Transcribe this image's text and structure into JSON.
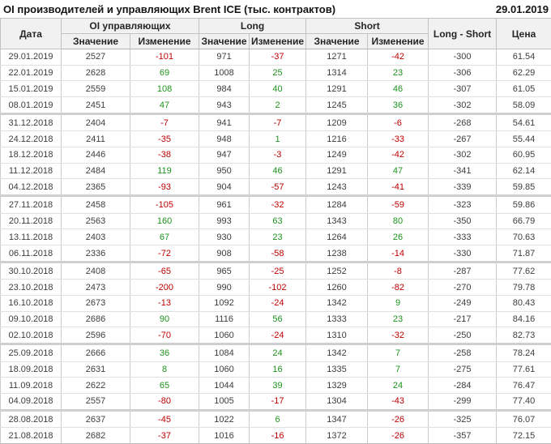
{
  "chart_data": {
    "type": "table",
    "title": "OI производителей и управляющих Brent ICE (тыс. контрактов)",
    "as_of_date": "29.01.2019",
    "headers": {
      "date": "Дата",
      "oi_group": "OI управляющих",
      "long_group": "Long",
      "short_group": "Short",
      "long_short": "Long - Short",
      "price": "Цена",
      "value": "Значение",
      "change": "Изменение"
    },
    "colors": {
      "positive": "#1d941d",
      "negative": "#c00000",
      "text": "#3d3d3d"
    },
    "columns": [
      {
        "key": "date",
        "signed": false
      },
      {
        "key": "oi",
        "signed": false
      },
      {
        "key": "oi_chg",
        "signed": true
      },
      {
        "key": "long",
        "signed": false
      },
      {
        "key": "long_chg",
        "signed": true
      },
      {
        "key": "short",
        "signed": false
      },
      {
        "key": "short_chg",
        "signed": true
      },
      {
        "key": "ls",
        "signed": false
      },
      {
        "key": "price",
        "signed": false
      }
    ],
    "rows": [
      {
        "date": "29.01.2019",
        "oi": 2527,
        "oi_chg": -101,
        "long": 971,
        "long_chg": -37,
        "short": 1271,
        "short_chg": -42,
        "ls": -300,
        "price": "61.54"
      },
      {
        "date": "22.01.2019",
        "oi": 2628,
        "oi_chg": 69,
        "long": 1008,
        "long_chg": 25,
        "short": 1314,
        "short_chg": 23,
        "ls": -306,
        "price": "62.29"
      },
      {
        "date": "15.01.2019",
        "oi": 2559,
        "oi_chg": 108,
        "long": 984,
        "long_chg": 40,
        "short": 1291,
        "short_chg": 46,
        "ls": -307,
        "price": "61.05"
      },
      {
        "date": "08.01.2019",
        "oi": 2451,
        "oi_chg": 47,
        "long": 943,
        "long_chg": 2,
        "short": 1245,
        "short_chg": 36,
        "ls": -302,
        "price": "58.09"
      },
      {
        "date": "31.12.2018",
        "oi": 2404,
        "oi_chg": -7,
        "long": 941,
        "long_chg": -7,
        "short": 1209,
        "short_chg": -6,
        "ls": -268,
        "price": "54.61"
      },
      {
        "date": "24.12.2018",
        "oi": 2411,
        "oi_chg": -35,
        "long": 948,
        "long_chg": 1,
        "short": 1216,
        "short_chg": -33,
        "ls": -267,
        "price": "55.44"
      },
      {
        "date": "18.12.2018",
        "oi": 2446,
        "oi_chg": -38,
        "long": 947,
        "long_chg": -3,
        "short": 1249,
        "short_chg": -42,
        "ls": -302,
        "price": "60.95"
      },
      {
        "date": "11.12.2018",
        "oi": 2484,
        "oi_chg": 119,
        "long": 950,
        "long_chg": 46,
        "short": 1291,
        "short_chg": 47,
        "ls": -341,
        "price": "62.14"
      },
      {
        "date": "04.12.2018",
        "oi": 2365,
        "oi_chg": -93,
        "long": 904,
        "long_chg": -57,
        "short": 1243,
        "short_chg": -41,
        "ls": -339,
        "price": "59.85"
      },
      {
        "date": "27.11.2018",
        "oi": 2458,
        "oi_chg": -105,
        "long": 961,
        "long_chg": -32,
        "short": 1284,
        "short_chg": -59,
        "ls": -323,
        "price": "59.86"
      },
      {
        "date": "20.11.2018",
        "oi": 2563,
        "oi_chg": 160,
        "long": 993,
        "long_chg": 63,
        "short": 1343,
        "short_chg": 80,
        "ls": -350,
        "price": "66.79"
      },
      {
        "date": "13.11.2018",
        "oi": 2403,
        "oi_chg": 67,
        "long": 930,
        "long_chg": 23,
        "short": 1264,
        "short_chg": 26,
        "ls": -333,
        "price": "70.63"
      },
      {
        "date": "06.11.2018",
        "oi": 2336,
        "oi_chg": -72,
        "long": 908,
        "long_chg": -58,
        "short": 1238,
        "short_chg": -14,
        "ls": -330,
        "price": "71.87"
      },
      {
        "date": "30.10.2018",
        "oi": 2408,
        "oi_chg": -65,
        "long": 965,
        "long_chg": -25,
        "short": 1252,
        "short_chg": -8,
        "ls": -287,
        "price": "77.62"
      },
      {
        "date": "23.10.2018",
        "oi": 2473,
        "oi_chg": -200,
        "long": 990,
        "long_chg": -102,
        "short": 1260,
        "short_chg": -82,
        "ls": -270,
        "price": "79.78"
      },
      {
        "date": "16.10.2018",
        "oi": 2673,
        "oi_chg": -13,
        "long": 1092,
        "long_chg": -24,
        "short": 1342,
        "short_chg": 9,
        "ls": -249,
        "price": "80.43"
      },
      {
        "date": "09.10.2018",
        "oi": 2686,
        "oi_chg": 90,
        "long": 1116,
        "long_chg": 56,
        "short": 1333,
        "short_chg": 23,
        "ls": -217,
        "price": "84.16"
      },
      {
        "date": "02.10.2018",
        "oi": 2596,
        "oi_chg": -70,
        "long": 1060,
        "long_chg": -24,
        "short": 1310,
        "short_chg": -32,
        "ls": -250,
        "price": "82.73"
      },
      {
        "date": "25.09.2018",
        "oi": 2666,
        "oi_chg": 36,
        "long": 1084,
        "long_chg": 24,
        "short": 1342,
        "short_chg": 7,
        "ls": -258,
        "price": "78.24"
      },
      {
        "date": "18.09.2018",
        "oi": 2631,
        "oi_chg": 8,
        "long": 1060,
        "long_chg": 16,
        "short": 1335,
        "short_chg": 7,
        "ls": -275,
        "price": "77.61"
      },
      {
        "date": "11.09.2018",
        "oi": 2622,
        "oi_chg": 65,
        "long": 1044,
        "long_chg": 39,
        "short": 1329,
        "short_chg": 24,
        "ls": -284,
        "price": "76.47"
      },
      {
        "date": "04.09.2018",
        "oi": 2557,
        "oi_chg": -80,
        "long": 1005,
        "long_chg": -17,
        "short": 1304,
        "short_chg": -43,
        "ls": -299,
        "price": "77.40"
      },
      {
        "date": "28.08.2018",
        "oi": 2637,
        "oi_chg": -45,
        "long": 1022,
        "long_chg": 6,
        "short": 1347,
        "short_chg": -26,
        "ls": -325,
        "price": "76.07"
      },
      {
        "date": "21.08.2018",
        "oi": 2682,
        "oi_chg": -37,
        "long": 1016,
        "long_chg": -16,
        "short": 1372,
        "short_chg": -26,
        "ls": -357,
        "price": "72.15"
      }
    ]
  }
}
